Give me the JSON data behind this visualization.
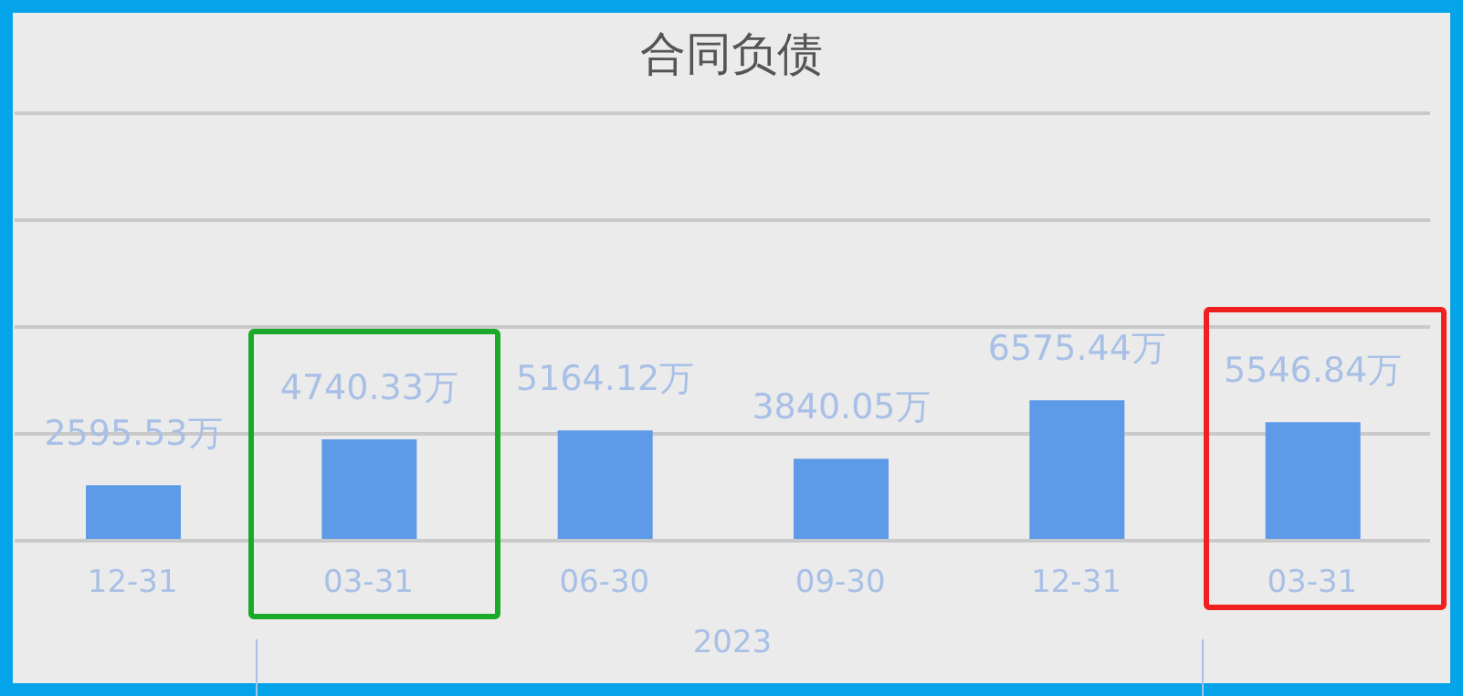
{
  "chart_data": {
    "type": "bar",
    "title": "合同负债",
    "categories": [
      "12-31",
      "03-31",
      "06-30",
      "09-30",
      "12-31",
      "03-31"
    ],
    "values": [
      2595.53,
      4740.33,
      5164.12,
      3840.05,
      6575.44,
      5546.84
    ],
    "value_labels": [
      "2595.53万",
      "4740.33万",
      "5164.12万",
      "3840.05万",
      "6575.44万",
      "5546.84万"
    ],
    "color": "#5d9be8",
    "ylim": [
      0,
      20000
    ],
    "yticks": [
      {
        "value": 0,
        "label": null
      },
      {
        "value": 5000,
        "label": null
      },
      {
        "value": 10000,
        "label": null
      },
      {
        "value": 15000,
        "label": null
      },
      {
        "value": 20000,
        "label": null
      }
    ],
    "tick_labels": "x",
    "grid": "y",
    "annotations": [
      "2023"
    ]
  }
}
